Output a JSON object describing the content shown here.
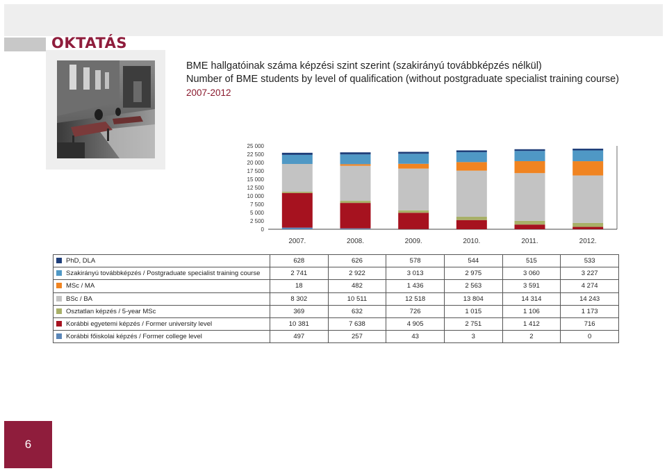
{
  "section_title": "OKTATÁS",
  "heading": {
    "line1": "BME hallgatóinak száma képzési szint szerint (szakirányú továbbképzés nélkül)",
    "line2": "Number of BME students by level of qualification (without postgraduate specialist training course)",
    "years": "2007-2012"
  },
  "page_number": "6",
  "colors": {
    "brand": "#8f1d3c"
  },
  "chart_data": {
    "type": "bar",
    "stacked": true,
    "categories": [
      "2007.",
      "2008.",
      "2009.",
      "2010.",
      "2011.",
      "2012."
    ],
    "ylim": [
      0,
      25000
    ],
    "yticks": [
      "0",
      "2 500",
      "5 000",
      "7 500",
      "10 000",
      "12 500",
      "15 000",
      "17 500",
      "20 000",
      "22 500",
      "25 000"
    ],
    "series": [
      {
        "name": "Korábbi főiskolai képzés / Former college level",
        "color": "#5a86b8",
        "values": [
          497,
          257,
          43,
          3,
          2,
          0
        ]
      },
      {
        "name": "Korábbi egyetemi képzés / Former university level",
        "color": "#a6121f",
        "values": [
          10381,
          7638,
          4905,
          2751,
          1412,
          716
        ]
      },
      {
        "name": "Osztatlan képzés / 5-year MSc",
        "color": "#a8b068",
        "values": [
          369,
          632,
          726,
          1015,
          1106,
          1173
        ]
      },
      {
        "name": "BSc / BA",
        "color": "#c3c3c3",
        "values": [
          8302,
          10511,
          12518,
          13804,
          14314,
          14243
        ]
      },
      {
        "name": "MSc / MA",
        "color": "#f08421",
        "values": [
          18,
          482,
          1436,
          2563,
          3591,
          4274
        ]
      },
      {
        "name": "Szakirányú továbbképzés / Postgraduate specialist training course",
        "color": "#4f98c5",
        "values": [
          2741,
          2922,
          3013,
          2975,
          3060,
          3227
        ]
      },
      {
        "name": "PhD, DLA",
        "color": "#1f3f7a",
        "values": [
          628,
          626,
          578,
          544,
          515,
          533
        ]
      }
    ]
  },
  "table": {
    "rows": [
      {
        "label": "PhD, DLA",
        "color": "#1f3f7a",
        "values": [
          "628",
          "626",
          "578",
          "544",
          "515",
          "533"
        ]
      },
      {
        "label": "Szakirányú továbbképzés / Postgraduate specialist training course",
        "color": "#4f98c5",
        "values": [
          "2 741",
          "2 922",
          "3 013",
          "2 975",
          "3 060",
          "3 227"
        ]
      },
      {
        "label": "MSc / MA",
        "color": "#f08421",
        "values": [
          "18",
          "482",
          "1 436",
          "2 563",
          "3 591",
          "4 274"
        ]
      },
      {
        "label": "BSc / BA",
        "color": "#c3c3c3",
        "values": [
          "8 302",
          "10 511",
          "12 518",
          "13 804",
          "14 314",
          "14 243"
        ]
      },
      {
        "label": "Osztatlan képzés / 5-year MSc",
        "color": "#a8b068",
        "values": [
          "369",
          "632",
          "726",
          "1 015",
          "1 106",
          "1 173"
        ]
      },
      {
        "label": "Korábbi egyetemi képzés / Former university level",
        "color": "#a6121f",
        "values": [
          "10 381",
          "7 638",
          "4 905",
          "2 751",
          "1 412",
          "716"
        ]
      },
      {
        "label": "Korábbi főiskolai képzés / Former college level",
        "color": "#5a86b8",
        "values": [
          "497",
          "257",
          "43",
          "3",
          "2",
          "0"
        ]
      }
    ]
  }
}
